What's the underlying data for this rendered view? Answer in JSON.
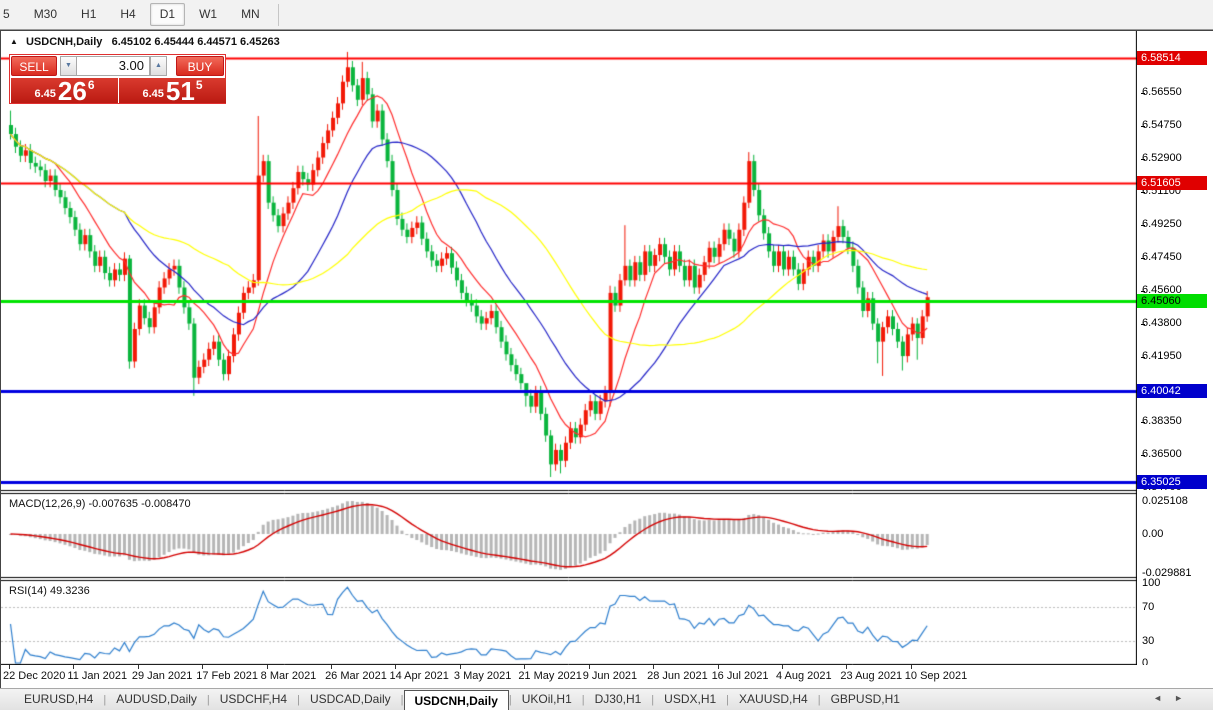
{
  "toolbar": {
    "timeframes": [
      "5",
      "M30",
      "H1",
      "H4",
      "D1",
      "W1",
      "MN"
    ],
    "active": "D1"
  },
  "header": {
    "symbol": "USDCNH,Daily",
    "quote": "6.45102 6.45444 6.44571 6.45263"
  },
  "trade_panel": {
    "sell_label": "SELL",
    "buy_label": "BUY",
    "volume": "3.00",
    "sell_price_small": "6.45",
    "sell_price_big": "26",
    "sell_price_sup": "6",
    "buy_price_small": "6.45",
    "buy_price_big": "51",
    "buy_price_sup": "5"
  },
  "macd_panel": {
    "title": "MACD(12,26,9)",
    "current": "-0.007635 -0.008470",
    "axis_labels": [
      "0.025108",
      "0.00",
      "-0.029881"
    ]
  },
  "rsi_panel": {
    "title": "RSI(14)",
    "current": "49.3236",
    "axis_labels": [
      "100",
      "70",
      "30",
      "0"
    ]
  },
  "tabs": {
    "items": [
      "EURUSD,H4",
      "AUDUSD,Daily",
      "USDCHF,H4",
      "USDCAD,Daily",
      "USDCNH,Daily",
      "UKOil,H1",
      "DJ30,H1",
      "USDX,H1",
      "XAUUSD,H4",
      "GBPUSD,H1"
    ],
    "active": "USDCNH,Daily"
  },
  "chart_data": {
    "type": "candlestick",
    "title": "USDCNH Daily",
    "ohlc_current": {
      "open": 6.45102,
      "high": 6.45444,
      "low": 6.44571,
      "close": 6.45263
    },
    "up_color": "#f21907",
    "down_color": "#0ab53d",
    "first_open": 6.548,
    "default_wick": 0.0035,
    "closes": [
      6.543,
      6.536,
      6.531,
      6.534,
      6.527,
      6.525,
      6.523,
      6.517,
      6.52,
      6.512,
      6.508,
      6.502,
      6.497,
      6.49,
      6.482,
      6.487,
      6.478,
      6.47,
      6.475,
      6.466,
      6.462,
      6.468,
      6.465,
      6.474,
      6.417,
      6.435,
      6.448,
      6.441,
      6.436,
      6.447,
      6.458,
      6.463,
      6.468,
      6.47,
      6.458,
      6.447,
      6.438,
      6.408,
      6.414,
      6.418,
      6.424,
      6.428,
      6.418,
      6.41,
      6.42,
      6.432,
      6.444,
      6.455,
      6.458,
      6.462,
      6.52,
      6.528,
      6.505,
      6.498,
      6.492,
      6.499,
      6.505,
      6.513,
      6.522,
      6.518,
      6.515,
      6.523,
      6.53,
      6.538,
      6.545,
      6.552,
      6.56,
      6.572,
      6.58,
      6.57,
      6.562,
      6.574,
      6.565,
      6.55,
      6.556,
      6.54,
      6.528,
      6.512,
      6.496,
      6.49,
      6.486,
      6.491,
      6.494,
      6.485,
      6.478,
      6.473,
      6.47,
      6.474,
      6.477,
      6.469,
      6.462,
      6.455,
      6.451,
      6.448,
      6.442,
      6.438,
      6.441,
      6.445,
      6.436,
      6.428,
      6.421,
      6.415,
      6.41,
      6.405,
      6.398,
      6.392,
      6.4,
      6.388,
      6.376,
      6.36,
      6.368,
      6.362,
      6.372,
      6.38,
      6.375,
      6.382,
      6.39,
      6.395,
      6.388,
      6.395,
      6.4,
      6.455,
      6.448,
      6.462,
      6.47,
      6.462,
      6.472,
      6.465,
      6.478,
      6.47,
      6.476,
      6.482,
      6.475,
      6.468,
      6.478,
      6.47,
      6.462,
      6.47,
      6.458,
      6.465,
      6.472,
      6.48,
      6.475,
      6.482,
      6.49,
      6.485,
      6.478,
      6.49,
      6.505,
      6.528,
      6.512,
      6.498,
      6.488,
      6.478,
      6.47,
      6.478,
      6.468,
      6.475,
      6.468,
      6.46,
      6.468,
      6.475,
      6.47,
      6.478,
      6.484,
      6.478,
      6.486,
      6.492,
      6.486,
      6.48,
      6.47,
      6.458,
      6.445,
      6.452,
      6.438,
      6.428,
      6.436,
      6.442,
      6.435,
      6.428,
      6.42,
      6.432,
      6.438,
      6.43,
      6.442,
      6.4526
    ],
    "wick_overrides": {
      "0": [
        6.556,
        6.54
      ],
      "24": [
        6.476,
        6.413
      ],
      "37": [
        6.441,
        6.398
      ],
      "50": [
        6.553,
        6.459
      ],
      "68": [
        6.5885,
        6.569
      ],
      "71": [
        6.583,
        6.559
      ],
      "104": [
        6.404,
        6.392
      ],
      "109": [
        6.379,
        6.353
      ],
      "111": [
        6.371,
        6.355
      ],
      "121": [
        6.459,
        6.392
      ],
      "124": [
        6.4925,
        6.459
      ],
      "149": [
        6.533,
        6.502
      ],
      "167": [
        6.503,
        6.483
      ],
      "175": [
        6.441,
        6.416
      ],
      "176": [
        6.439,
        6.409
      ],
      "180": [
        6.431,
        6.412
      ],
      "183": [
        6.441,
        6.418
      ],
      "185": [
        6.456,
        6.439
      ]
    },
    "moving_averages": [
      {
        "period": 10,
        "color": "#ff2e2e"
      },
      {
        "period": 24,
        "color": "#2424c8"
      },
      {
        "period": 45,
        "color": "#ffff00"
      }
    ],
    "horizontal_lines": [
      {
        "price": 6.58514,
        "color": "#ff0000",
        "width": 2,
        "badge": "red"
      },
      {
        "price": 6.51605,
        "color": "#ff0000",
        "width": 2,
        "badge": "red"
      },
      {
        "price": 6.4506,
        "color": "#00e400",
        "width": 3,
        "badge": "green"
      },
      {
        "price": 6.40042,
        "color": "#0000e0",
        "width": 3,
        "badge": "blue"
      },
      {
        "price": 6.35025,
        "color": "#0000e0",
        "width": 3,
        "badge": "blue"
      }
    ],
    "price_axis_ticks": [
      "6.56550",
      "6.54750",
      "6.52900",
      "6.51100",
      "6.49250",
      "6.47450",
      "6.45600",
      "6.43800",
      "6.41950",
      "6.38350",
      "6.36500",
      "6.34700"
    ],
    "ylim": [
      6.3458,
      6.5995
    ],
    "x_axis_dates": [
      "22 Dec 2020",
      "11 Jan 2021",
      "29 Jan 2021",
      "17 Feb 2021",
      "8 Mar 2021",
      "26 Mar 2021",
      "14 Apr 2021",
      "3 May 2021",
      "21 May 2021",
      "9 Jun 2021",
      "28 Jun 2021",
      "16 Jul 2021",
      "4 Aug 2021",
      "23 Aug 2021",
      "10 Sep 2021"
    ],
    "date_tick_bars": [
      0,
      13,
      26,
      39,
      52,
      65,
      78,
      91,
      104,
      117,
      130,
      143,
      156,
      169,
      182
    ],
    "macd": {
      "axis_max": 0.025108,
      "axis_min": -0.029881,
      "histogram_color": "#b6b6b6",
      "signal_color": "#d40000"
    },
    "rsi": {
      "period": 14,
      "levels": [
        70,
        30
      ],
      "line_color": "#2e7fce",
      "level_color": "#bbbbbb"
    }
  }
}
